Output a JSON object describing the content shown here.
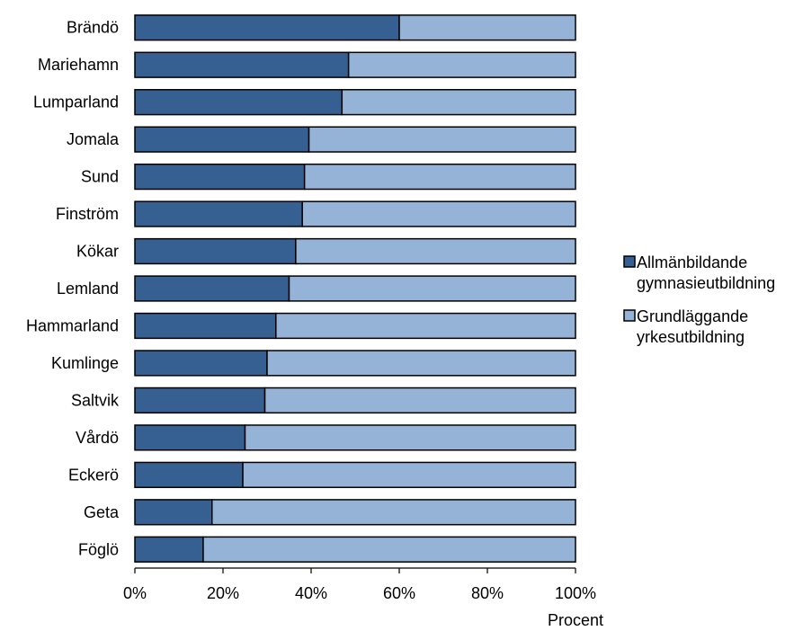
{
  "chart_data": {
    "type": "bar",
    "orientation": "horizontal",
    "stacked": "percent",
    "title": "",
    "xlabel": "Procent",
    "ylabel": "",
    "xlim": [
      0,
      100
    ],
    "x_ticks": [
      "0%",
      "20%",
      "40%",
      "60%",
      "80%",
      "100%"
    ],
    "grid": false,
    "legend_position": "right",
    "categories": [
      "Brändö",
      "Mariehamn",
      "Lumparland",
      "Jomala",
      "Sund",
      "Finström",
      "Kökar",
      "Lemland",
      "Hammarland",
      "Kumlinge",
      "Saltvik",
      "Vårdö",
      "Eckerö",
      "Geta",
      "Föglö"
    ],
    "series": [
      {
        "name": "Allmänbildande gymnasieutbildning",
        "legend_lines": [
          "Allmänbildande",
          "gymnasieutbildning"
        ],
        "color": "#366092",
        "values": [
          60,
          48.5,
          47,
          39.5,
          38.5,
          38,
          36.5,
          35,
          32,
          30,
          29.5,
          25,
          24.5,
          17.5,
          15.5
        ]
      },
      {
        "name": "Grundläggande yrkesutbildning",
        "legend_lines": [
          "Grundläggande",
          "yrkesutbildning"
        ],
        "color": "#95b3d7",
        "values": [
          40,
          51.5,
          53,
          60.5,
          61.5,
          62,
          63.5,
          65,
          68,
          70,
          70.5,
          75,
          75.5,
          82.5,
          84.5
        ]
      }
    ]
  }
}
